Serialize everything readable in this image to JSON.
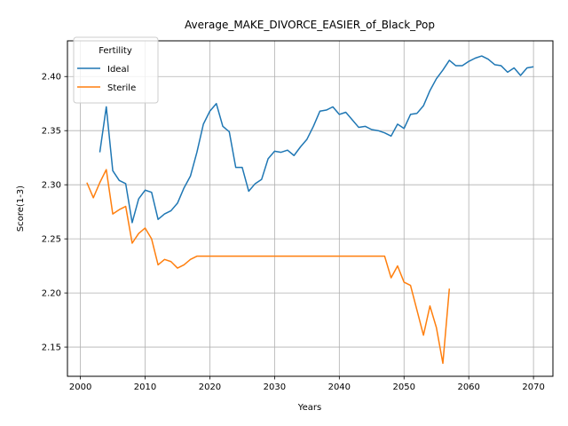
{
  "chart_data": {
    "type": "line",
    "title": "Average_MAKE_DIVORCE_EASIER_of_Black_Pop",
    "xlabel": "Years",
    "ylabel": "Score(1-3)",
    "xlim": [
      1998,
      2073
    ],
    "ylim": [
      2.123,
      2.433
    ],
    "x_ticks": [
      2000,
      2010,
      2020,
      2030,
      2040,
      2050,
      2060,
      2070
    ],
    "y_ticks": [
      2.15,
      2.2,
      2.25,
      2.3,
      2.35,
      2.4
    ],
    "x_tick_labels": [
      "2000",
      "2010",
      "2020",
      "2030",
      "2040",
      "2050",
      "2060",
      "2070"
    ],
    "y_tick_labels": [
      "2.15",
      "2.20",
      "2.25",
      "2.30",
      "2.35",
      "2.40"
    ],
    "grid": true,
    "legend": {
      "title": "Fertility",
      "position": "top-left"
    },
    "series": [
      {
        "name": "Ideal",
        "color": "#1f77b4",
        "x": [
          2003,
          2004,
          2005,
          2006,
          2007,
          2008,
          2009,
          2010,
          2011,
          2012,
          2013,
          2014,
          2015,
          2016,
          2017,
          2018,
          2019,
          2020,
          2021,
          2022,
          2023,
          2024,
          2025,
          2026,
          2027,
          2028,
          2029,
          2030,
          2031,
          2032,
          2033,
          2034,
          2035,
          2036,
          2037,
          2038,
          2039,
          2040,
          2041,
          2042,
          2043,
          2044,
          2045,
          2046,
          2047,
          2048,
          2049,
          2050,
          2051,
          2052,
          2053,
          2054,
          2055,
          2056,
          2057,
          2058,
          2059,
          2060,
          2061,
          2062,
          2063,
          2064,
          2065,
          2066,
          2067,
          2068,
          2069,
          2070
        ],
        "y": [
          2.33,
          2.372,
          2.313,
          2.304,
          2.301,
          2.265,
          2.287,
          2.295,
          2.293,
          2.268,
          2.273,
          2.276,
          2.283,
          2.297,
          2.308,
          2.33,
          2.356,
          2.368,
          2.375,
          2.354,
          2.349,
          2.316,
          2.316,
          2.294,
          2.301,
          2.305,
          2.324,
          2.331,
          2.33,
          2.332,
          2.327,
          2.335,
          2.342,
          2.354,
          2.368,
          2.369,
          2.372,
          2.365,
          2.367,
          2.36,
          2.353,
          2.354,
          2.351,
          2.35,
          2.348,
          2.345,
          2.356,
          2.352,
          2.365,
          2.366,
          2.373,
          2.387,
          2.398,
          2.406,
          2.415,
          2.41,
          2.41,
          2.414,
          2.417,
          2.419,
          2.416,
          2.411,
          2.41,
          2.404,
          2.408,
          2.401,
          2.408,
          2.409
        ]
      },
      {
        "name": "Sterile",
        "color": "#ff7f0e",
        "x": [
          2001,
          2002,
          2003,
          2004,
          2005,
          2006,
          2007,
          2008,
          2009,
          2010,
          2011,
          2012,
          2013,
          2014,
          2015,
          2016,
          2017,
          2018,
          2019,
          2020,
          2021,
          2022,
          2023,
          2024,
          2025,
          2026,
          2027,
          2028,
          2029,
          2030,
          2031,
          2032,
          2033,
          2034,
          2035,
          2036,
          2037,
          2038,
          2039,
          2040,
          2041,
          2042,
          2043,
          2044,
          2045,
          2046,
          2047,
          2048,
          2049,
          2050,
          2051,
          2052,
          2053,
          2054,
          2055,
          2056,
          2057
        ],
        "y": [
          2.302,
          2.288,
          2.302,
          2.314,
          2.273,
          2.277,
          2.28,
          2.246,
          2.255,
          2.26,
          2.25,
          2.226,
          2.231,
          2.229,
          2.223,
          2.226,
          2.231,
          2.234,
          2.234,
          2.234,
          2.234,
          2.234,
          2.234,
          2.234,
          2.234,
          2.234,
          2.234,
          2.234,
          2.234,
          2.234,
          2.234,
          2.234,
          2.234,
          2.234,
          2.234,
          2.234,
          2.234,
          2.234,
          2.234,
          2.234,
          2.234,
          2.234,
          2.234,
          2.234,
          2.234,
          2.234,
          2.234,
          2.214,
          2.225,
          2.21,
          2.207,
          2.184,
          2.161,
          2.188,
          2.168,
          2.135,
          2.204
        ]
      }
    ]
  }
}
